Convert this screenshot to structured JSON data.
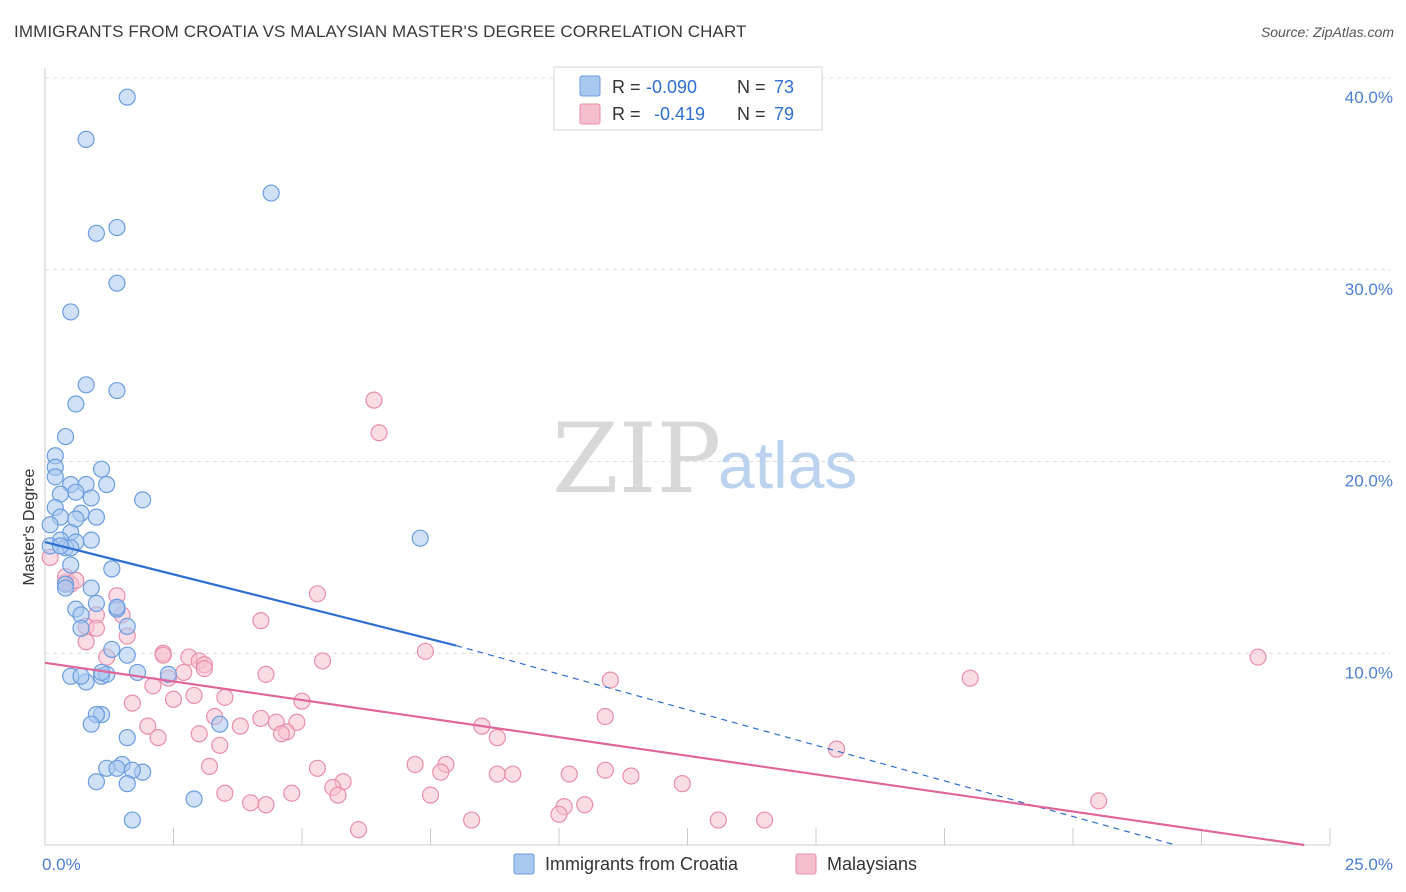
{
  "header": {
    "title": "IMMIGRANTS FROM CROATIA VS MALAYSIAN MASTER'S DEGREE CORRELATION CHART",
    "source": "Source: ZipAtlas.com"
  },
  "watermark": {
    "zip": "ZIP",
    "atlas": "atlas"
  },
  "colors": {
    "blue_fill": "#a9c8f0",
    "blue_stroke": "#6b9de0",
    "blue_line": "#2f6fd0",
    "pink_fill": "#f6bfd0",
    "pink_stroke": "#e98fab",
    "pink_line": "#e0659a",
    "tick": "#4a7fd0",
    "grid": "#dddddd"
  },
  "legend": {
    "rows": [
      {
        "r_label": "R =",
        "r_value": "-0.090",
        "n_label": "N =",
        "n_value": "73"
      },
      {
        "r_label": "R =",
        "r_value": "-0.419",
        "n_label": "N =",
        "n_value": "79"
      }
    ]
  },
  "chart_data": {
    "type": "scatter",
    "title": "IMMIGRANTS FROM CROATIA VS MALAYSIAN MASTER'S DEGREE CORRELATION CHART",
    "xlabel": "",
    "ylabel": "Master's Degree",
    "xlim": [
      0,
      25
    ],
    "ylim": [
      0,
      40
    ],
    "x_tick_labels": [
      "0.0%",
      "25.0%"
    ],
    "y_ticks": [
      10,
      20,
      30,
      40
    ],
    "y_tick_labels": [
      "10.0%",
      "20.0%",
      "30.0%",
      "40.0%"
    ],
    "grid": true,
    "series": [
      {
        "name": "Immigrants from Croatia",
        "color": "#a9c8f0",
        "r": -0.09,
        "n": 73,
        "trend": {
          "x": [
            0,
            8
          ],
          "y": [
            15.8,
            10.4
          ],
          "dashed_to": [
            22,
            0
          ]
        },
        "points": [
          [
            1.6,
            39.0
          ],
          [
            0.8,
            36.8
          ],
          [
            4.4,
            34.0
          ],
          [
            1.4,
            32.2
          ],
          [
            1.0,
            31.9
          ],
          [
            1.4,
            29.3
          ],
          [
            0.5,
            27.8
          ],
          [
            0.8,
            24.0
          ],
          [
            1.4,
            23.7
          ],
          [
            0.6,
            23.0
          ],
          [
            0.4,
            21.3
          ],
          [
            0.2,
            20.3
          ],
          [
            0.2,
            19.7
          ],
          [
            1.1,
            19.6
          ],
          [
            0.2,
            19.2
          ],
          [
            0.8,
            18.8
          ],
          [
            0.5,
            18.8
          ],
          [
            1.2,
            18.8
          ],
          [
            0.6,
            18.4
          ],
          [
            0.3,
            18.3
          ],
          [
            0.9,
            18.1
          ],
          [
            1.9,
            18.0
          ],
          [
            0.2,
            17.6
          ],
          [
            0.7,
            17.3
          ],
          [
            0.3,
            17.1
          ],
          [
            1.0,
            17.1
          ],
          [
            0.6,
            17.0
          ],
          [
            0.1,
            16.7
          ],
          [
            7.3,
            16.0
          ],
          [
            0.5,
            16.3
          ],
          [
            0.3,
            15.9
          ],
          [
            0.6,
            15.8
          ],
          [
            0.1,
            15.6
          ],
          [
            0.4,
            15.5
          ],
          [
            0.5,
            15.5
          ],
          [
            0.5,
            14.6
          ],
          [
            1.3,
            14.4
          ],
          [
            0.4,
            13.6
          ],
          [
            0.9,
            13.4
          ],
          [
            0.4,
            13.4
          ],
          [
            1.0,
            12.6
          ],
          [
            0.6,
            12.3
          ],
          [
            1.4,
            12.3
          ],
          [
            0.7,
            12.0
          ],
          [
            0.7,
            11.3
          ],
          [
            1.6,
            11.4
          ],
          [
            1.3,
            10.2
          ],
          [
            1.6,
            9.9
          ],
          [
            1.8,
            9.0
          ],
          [
            0.5,
            8.8
          ],
          [
            1.1,
            8.8
          ],
          [
            1.2,
            8.9
          ],
          [
            2.4,
            8.9
          ],
          [
            0.8,
            8.5
          ],
          [
            1.1,
            6.8
          ],
          [
            1.0,
            6.8
          ],
          [
            0.9,
            6.3
          ],
          [
            3.4,
            6.3
          ],
          [
            1.6,
            5.6
          ],
          [
            1.5,
            4.2
          ],
          [
            1.2,
            4.0
          ],
          [
            1.4,
            4.0
          ],
          [
            1.9,
            3.8
          ],
          [
            1.7,
            3.9
          ],
          [
            1.0,
            3.3
          ],
          [
            1.6,
            3.2
          ],
          [
            2.9,
            2.4
          ],
          [
            1.7,
            1.3
          ],
          [
            0.3,
            15.6
          ],
          [
            0.9,
            15.9
          ],
          [
            1.4,
            12.4
          ],
          [
            0.7,
            8.8
          ],
          [
            1.1,
            9.0
          ]
        ]
      },
      {
        "name": "Malaysians",
        "color": "#f6bfd0",
        "r": -0.419,
        "n": 79,
        "trend": {
          "x": [
            0,
            24.5
          ],
          "y": [
            9.5,
            0
          ]
        },
        "points": [
          [
            0.1,
            15.0
          ],
          [
            0.4,
            13.7
          ],
          [
            0.5,
            13.6
          ],
          [
            0.4,
            14.0
          ],
          [
            0.6,
            13.8
          ],
          [
            1.4,
            13.0
          ],
          [
            1.0,
            12.0
          ],
          [
            1.5,
            12.0
          ],
          [
            0.8,
            11.4
          ],
          [
            1.0,
            11.3
          ],
          [
            1.6,
            10.9
          ],
          [
            0.8,
            10.6
          ],
          [
            2.3,
            10.0
          ],
          [
            1.2,
            9.8
          ],
          [
            2.3,
            9.9
          ],
          [
            2.8,
            9.8
          ],
          [
            3.0,
            9.6
          ],
          [
            3.1,
            9.4
          ],
          [
            3.1,
            9.2
          ],
          [
            2.7,
            9.0
          ],
          [
            4.3,
            8.9
          ],
          [
            2.4,
            8.7
          ],
          [
            2.1,
            8.3
          ],
          [
            2.9,
            7.8
          ],
          [
            3.5,
            7.7
          ],
          [
            2.5,
            7.6
          ],
          [
            5.0,
            7.5
          ],
          [
            1.7,
            7.4
          ],
          [
            3.3,
            6.7
          ],
          [
            4.2,
            6.6
          ],
          [
            4.5,
            6.4
          ],
          [
            4.9,
            6.4
          ],
          [
            3.8,
            6.2
          ],
          [
            2.0,
            6.2
          ],
          [
            4.7,
            5.9
          ],
          [
            3.0,
            5.8
          ],
          [
            4.6,
            5.8
          ],
          [
            2.2,
            5.6
          ],
          [
            3.4,
            5.2
          ],
          [
            5.3,
            4.0
          ],
          [
            3.2,
            4.1
          ],
          [
            7.2,
            4.2
          ],
          [
            7.8,
            4.2
          ],
          [
            7.7,
            3.8
          ],
          [
            8.8,
            3.7
          ],
          [
            9.1,
            3.7
          ],
          [
            10.2,
            3.7
          ],
          [
            10.9,
            3.9
          ],
          [
            11.4,
            3.6
          ],
          [
            5.8,
            3.3
          ],
          [
            5.6,
            3.0
          ],
          [
            5.7,
            2.6
          ],
          [
            4.8,
            2.7
          ],
          [
            3.5,
            2.7
          ],
          [
            4.0,
            2.2
          ],
          [
            4.3,
            2.1
          ],
          [
            7.5,
            2.6
          ],
          [
            10.5,
            2.1
          ],
          [
            10.1,
            2.0
          ],
          [
            10.0,
            1.6
          ],
          [
            8.3,
            1.3
          ],
          [
            13.1,
            1.3
          ],
          [
            14.0,
            1.3
          ],
          [
            6.1,
            0.8
          ],
          [
            12.4,
            3.2
          ],
          [
            15.4,
            5.0
          ],
          [
            20.5,
            2.3
          ],
          [
            23.6,
            9.8
          ],
          [
            18.0,
            8.7
          ],
          [
            11.0,
            8.6
          ],
          [
            10.9,
            6.7
          ],
          [
            8.5,
            6.2
          ],
          [
            8.8,
            5.6
          ],
          [
            5.3,
            13.1
          ],
          [
            6.5,
            21.5
          ],
          [
            6.4,
            23.2
          ],
          [
            4.2,
            11.7
          ],
          [
            5.4,
            9.6
          ],
          [
            7.4,
            10.1
          ]
        ]
      }
    ]
  },
  "bottom_legend": {
    "items": [
      {
        "label": "Immigrants from Croatia"
      },
      {
        "label": "Malaysians"
      }
    ]
  }
}
